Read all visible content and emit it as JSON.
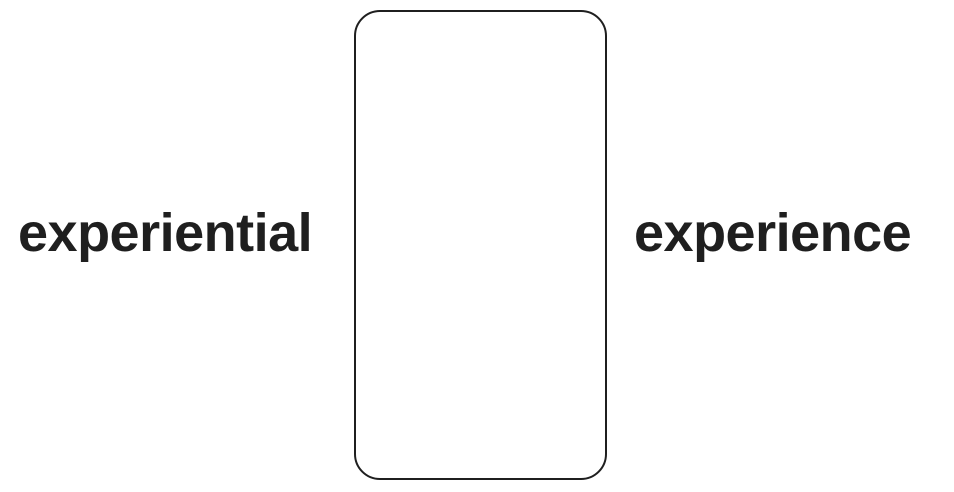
{
  "left_label": "experiential",
  "right_label": "experience"
}
